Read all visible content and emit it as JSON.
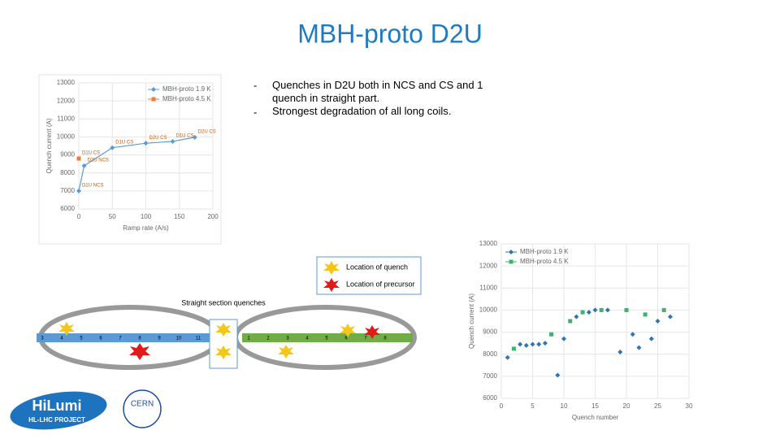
{
  "title": "MBH-proto D2U",
  "bullets": [
    "Quenches in D2U both in NCS and CS and 1 quench in straight part.",
    "Strongest degradation of all long coils."
  ],
  "chart_data": [
    {
      "type": "line",
      "xlabel": "Ramp rate (A/s)",
      "ylabel": "Quench current (A)",
      "xlim": [
        0,
        200
      ],
      "xticks": [
        0,
        50,
        100,
        150,
        200
      ],
      "ylim": [
        6000,
        13000
      ],
      "yticks": [
        6000,
        7000,
        8000,
        9000,
        10000,
        11000,
        12000,
        13000
      ],
      "grid": true,
      "series": [
        {
          "name": "MBH-proto 1.9 K",
          "color": "#5b9bd5",
          "x": [
            0,
            8,
            50,
            100,
            140,
            173
          ],
          "values": [
            7000,
            8400,
            9400,
            9650,
            9750,
            9980
          ],
          "point_labels": [
            "D1U NCS",
            "D2U NCS",
            "D1U CS",
            "D2U CS",
            "D1U CS",
            "D2U CS"
          ]
        },
        {
          "name": "MBH-proto 4.5 K",
          "color": "#ed7d31",
          "x": [
            0
          ],
          "values": [
            8800
          ],
          "point_labels": [
            "D1U CS"
          ]
        }
      ]
    },
    {
      "type": "scatter",
      "xlabel": "Quench number",
      "ylabel": "Quench current (A)",
      "xlim": [
        0,
        30
      ],
      "xticks": [
        0,
        5,
        10,
        15,
        20,
        25,
        30
      ],
      "ylim": [
        6000,
        13000
      ],
      "yticks": [
        6000,
        7000,
        8000,
        9000,
        10000,
        11000,
        12000,
        13000
      ],
      "grid": true,
      "series": [
        {
          "name": "MBH-proto 1.9 K",
          "color": "#2e75b6",
          "x": [
            1,
            3,
            4,
            5,
            6,
            7,
            9,
            10,
            12,
            14,
            15,
            17,
            19,
            21,
            22,
            24,
            25,
            27
          ],
          "values": [
            7850,
            8450,
            8400,
            8450,
            8450,
            8500,
            7050,
            8700,
            9700,
            9900,
            10000,
            10000,
            8100,
            8900,
            8300,
            8700,
            9500,
            9700
          ]
        },
        {
          "name": "MBH-proto 4.5 K",
          "color": "#3cb371",
          "x": [
            2,
            8,
            11,
            13,
            16,
            20,
            23,
            26
          ],
          "values": [
            8250,
            8900,
            9500,
            9900,
            10000,
            10000,
            9800,
            10000
          ]
        }
      ]
    }
  ],
  "diagram": {
    "title": "Straight section quenches",
    "legend": [
      "Location of quench",
      "Location of precursor"
    ],
    "left_cells": [
      "3",
      "4",
      "5",
      "6",
      "7",
      "8",
      "9",
      "10",
      "11"
    ],
    "right_cells": [
      "1",
      "2",
      "3",
      "4",
      "5",
      "6",
      "7",
      "8"
    ]
  },
  "logos": {
    "hilumi": "HiLumi",
    "project": "HL-LHC PROJECT",
    "cern": "CERN"
  }
}
